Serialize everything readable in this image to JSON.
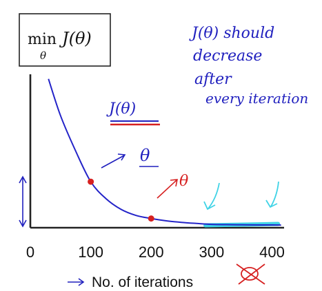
{
  "chart_data": {
    "type": "line",
    "title_math": "min_θ J(θ)",
    "title_parts": {
      "op": "min",
      "var": "J(θ)",
      "sub": "θ"
    },
    "xlabel": "No. of iterations",
    "x_ticks": [
      0,
      100,
      200,
      300,
      400
    ],
    "xlim": [
      0,
      420
    ],
    "ylim": [
      0,
      1
    ],
    "grid": false,
    "series": [
      {
        "x": [
          30,
          50,
          75,
          100,
          125,
          150,
          175,
          200,
          225,
          250,
          275,
          300,
          325,
          350,
          375,
          400,
          415
        ],
        "y": [
          0.97,
          0.73,
          0.5,
          0.3,
          0.19,
          0.12,
          0.08,
          0.06,
          0.045,
          0.035,
          0.028,
          0.022,
          0.02,
          0.019,
          0.018,
          0.018,
          0.017
        ],
        "color": "#2323c8"
      }
    ],
    "highlight": {
      "x_start": 290,
      "x_end": 410,
      "color": "#3fd3e6"
    },
    "points": [
      {
        "x": 100,
        "y": 0.3,
        "color": "#d62020"
      },
      {
        "x": 200,
        "y": 0.06,
        "color": "#d62020"
      }
    ],
    "annotations": {
      "note_lines": [
        "J(θ) should",
        "decrease",
        "after",
        "every iteration"
      ],
      "curve_label": "J(θ)",
      "theta_1": "θ",
      "theta_2": "θ"
    }
  }
}
